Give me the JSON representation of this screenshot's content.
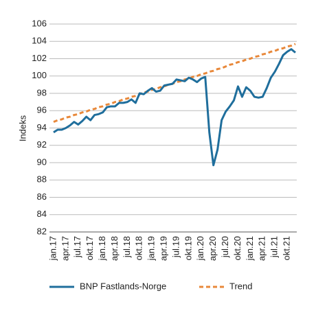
{
  "chart_data": {
    "type": "line",
    "ylabel": "Indeks",
    "categories": [
      "jan.17",
      null,
      null,
      "apr.17",
      null,
      null,
      "jul.17",
      null,
      null,
      "okt.17",
      null,
      null,
      "jan.18",
      null,
      null,
      "apr.18",
      null,
      null,
      "jul.18",
      null,
      null,
      "okt.18",
      null,
      null,
      "jan.19",
      null,
      null,
      "apr.19",
      null,
      null,
      "jul.19",
      null,
      null,
      "okt.19",
      null,
      null,
      "jan.20",
      null,
      null,
      "apr.20",
      null,
      null,
      "jul.20",
      null,
      null,
      "okt.20",
      null,
      null,
      "jan.21",
      null,
      null,
      "apr.21",
      null,
      null,
      "jul.21",
      null,
      null,
      "okt.21",
      null,
      null
    ],
    "series": [
      {
        "name": "BNP Fastlands-Norge",
        "color": "#1f6e9c",
        "dashed": false,
        "values": [
          93.5,
          93.8,
          93.8,
          94.0,
          94.3,
          94.7,
          94.4,
          94.8,
          95.3,
          94.9,
          95.5,
          95.6,
          95.8,
          96.4,
          96.5,
          96.5,
          96.9,
          96.9,
          97.0,
          97.3,
          96.9,
          98.0,
          97.9,
          98.3,
          98.6,
          98.2,
          98.3,
          98.9,
          99.0,
          99.1,
          99.6,
          99.5,
          99.4,
          99.8,
          99.6,
          99.3,
          99.7,
          99.9,
          93.5,
          89.7,
          91.5,
          94.9,
          95.9,
          96.5,
          97.2,
          98.8,
          97.6,
          98.7,
          98.3,
          97.6,
          97.5,
          97.6,
          98.6,
          99.8,
          100.5,
          101.4,
          102.4,
          102.8,
          103.1,
          102.7
        ]
      },
      {
        "name": "Trend",
        "color": "#e8883a",
        "dashed": true,
        "values": [
          94.7,
          94.9,
          95.0,
          95.2,
          95.3,
          95.5,
          95.6,
          95.8,
          95.9,
          96.1,
          96.2,
          96.4,
          96.5,
          96.7,
          96.8,
          97.0,
          97.1,
          97.3,
          97.4,
          97.6,
          97.7,
          97.9,
          98.1,
          98.2,
          98.4,
          98.5,
          98.7,
          98.8,
          99.0,
          99.1,
          99.3,
          99.4,
          99.6,
          99.7,
          99.9,
          100.0,
          100.2,
          100.3,
          100.5,
          100.6,
          100.8,
          100.9,
          101.1,
          101.3,
          101.4,
          101.6,
          101.7,
          101.9,
          102.0,
          102.2,
          102.3,
          102.5,
          102.6,
          102.8,
          102.9,
          103.1,
          103.2,
          103.4,
          103.5,
          103.7
        ]
      }
    ],
    "ylim": [
      82,
      106
    ],
    "yticks": [
      82,
      84,
      86,
      88,
      90,
      92,
      94,
      96,
      98,
      100,
      102,
      104,
      106
    ],
    "grid": true,
    "legend": "bottom"
  }
}
